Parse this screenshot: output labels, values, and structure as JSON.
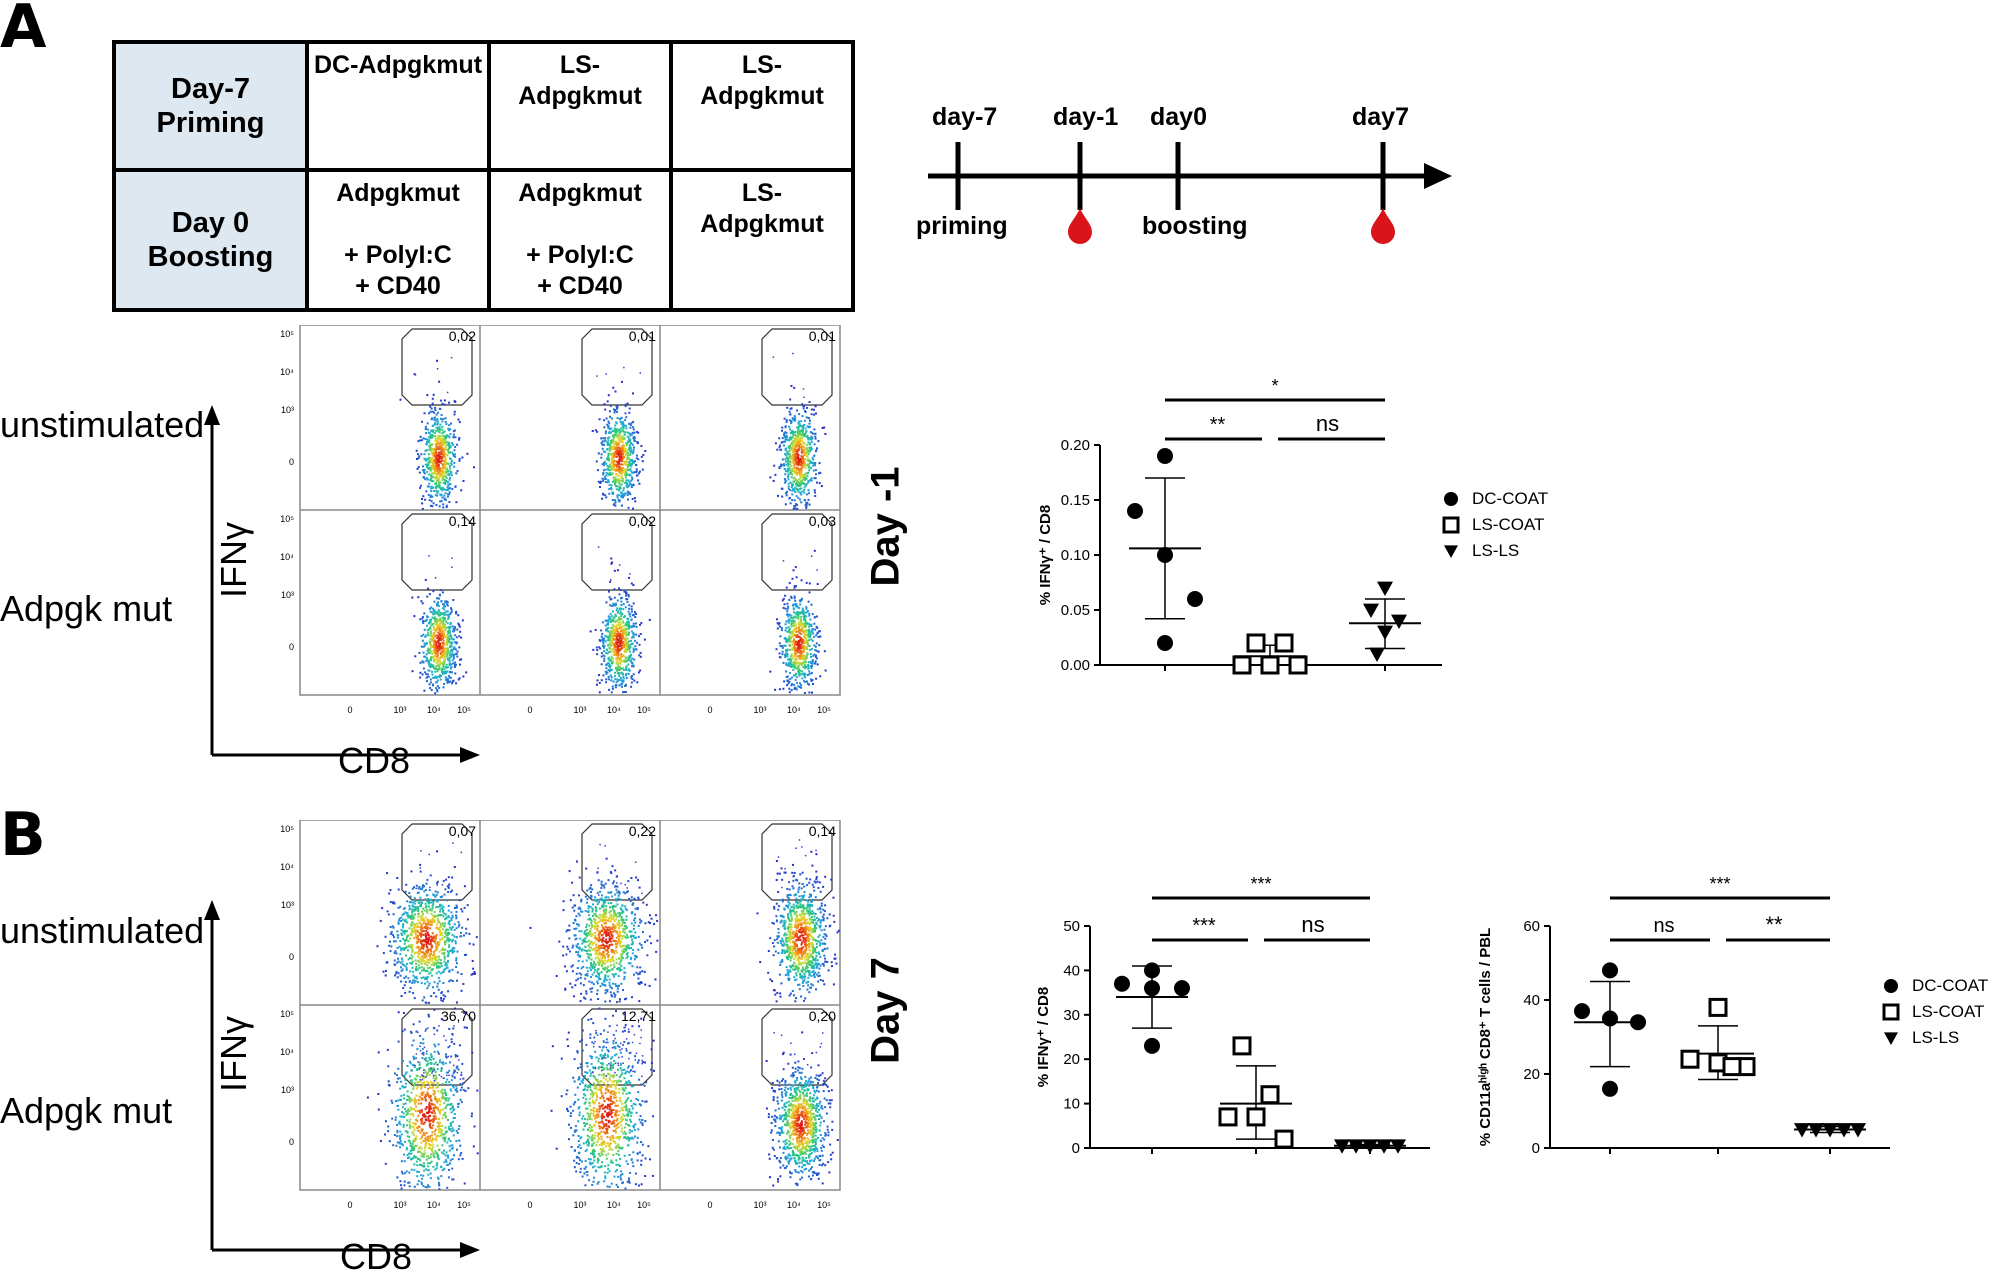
{
  "panels": {
    "a": "A",
    "b": "B"
  },
  "protocol_table": {
    "row_headers": [
      "Day-7\nPriming",
      "Day 0\nBoosting"
    ],
    "priming": [
      "DC-Adpgkmut",
      "LS-\nAdpgkmut",
      "LS-\nAdpgkmut"
    ],
    "boosting": [
      "Adpgkmut\n\n+ PolyI:C\n+ CD40",
      "Adpgkmut\n\n+ PolyI:C\n+ CD40",
      "LS-\nAdpgkmut"
    ]
  },
  "timeline": {
    "top_labels": [
      "day-7",
      "day-1",
      "day0",
      "day7"
    ],
    "bottom_labels": [
      "priming",
      "boosting"
    ],
    "blood_color": "#d9141b"
  },
  "flow": {
    "row_labels": [
      "unstimulated",
      "Adpgk mut"
    ],
    "y_axis": "IFNγ",
    "x_axis": "CD8",
    "y_ticks": [
      "10⁵",
      "10⁴",
      "10³",
      "0"
    ],
    "x_ticks": [
      "0",
      "10³",
      "10⁴",
      "10⁵"
    ],
    "day_minus1_pcts": [
      [
        "0,02",
        "0,01",
        "0,01"
      ],
      [
        "0,14",
        "0,02",
        "0,03"
      ]
    ],
    "day7_pcts": [
      [
        "0,07",
        "0,22",
        "0,14"
      ],
      [
        "36,70",
        "12,71",
        "0,20"
      ]
    ]
  },
  "day_labels": {
    "a": "Day -1",
    "b": "Day 7"
  },
  "chart_data": [
    {
      "type": "scatter",
      "title": "",
      "ylabel": "% IFNγ⁺ / CD8",
      "ylim": [
        0,
        0.2
      ],
      "yticks": [
        "0.00",
        "0.05",
        "0.10",
        "0.15",
        "0.20"
      ],
      "groups": [
        "DC-COAT",
        "LS-COAT",
        "LS-LS"
      ],
      "series": [
        {
          "name": "DC-COAT",
          "marker": "circle",
          "values": [
            0.19,
            0.14,
            0.1,
            0.06,
            0.02
          ],
          "mean": 0.106,
          "sd_low": 0.042,
          "sd_high": 0.17
        },
        {
          "name": "LS-COAT",
          "marker": "square",
          "values": [
            0.02,
            0.02,
            0.0,
            0.0,
            0.0
          ],
          "mean": 0.008,
          "sd_low": 0.0,
          "sd_high": 0.018
        },
        {
          "name": "LS-LS",
          "marker": "triangle-down",
          "values": [
            0.07,
            0.05,
            0.04,
            0.03,
            0.01
          ],
          "mean": 0.038,
          "sd_low": 0.015,
          "sd_high": 0.06
        }
      ],
      "significance": [
        "*",
        "**",
        "ns"
      ]
    },
    {
      "type": "scatter",
      "title": "",
      "ylabel": "% IFNγ⁺ / CD8",
      "ylim": [
        0,
        50
      ],
      "yticks": [
        "0",
        "10",
        "20",
        "30",
        "40",
        "50"
      ],
      "groups": [
        "DC-COAT",
        "LS-COAT",
        "LS-LS"
      ],
      "series": [
        {
          "name": "DC-COAT",
          "marker": "circle",
          "values": [
            40,
            37,
            36,
            36,
            23
          ],
          "mean": 34,
          "sd_low": 27,
          "sd_high": 41
        },
        {
          "name": "LS-COAT",
          "marker": "square",
          "values": [
            23,
            12,
            7,
            7,
            2
          ],
          "mean": 10,
          "sd_low": 2,
          "sd_high": 18.5
        },
        {
          "name": "LS-LS",
          "marker": "triangle-down",
          "values": [
            0.5,
            0.5,
            0.5,
            0.5,
            0.5
          ],
          "mean": 0.5,
          "sd_low": 0.2,
          "sd_high": 0.8
        }
      ],
      "significance": [
        "***",
        "***",
        "ns"
      ]
    },
    {
      "type": "scatter",
      "title": "",
      "ylabel": "% CD11aʰⁱᵍʰ CD8⁺ T cells / PBL",
      "ylim": [
        0,
        60
      ],
      "yticks": [
        "0",
        "20",
        "40",
        "60"
      ],
      "groups": [
        "DC-COAT",
        "LS-COAT",
        "LS-LS"
      ],
      "series": [
        {
          "name": "DC-COAT",
          "marker": "circle",
          "values": [
            48,
            37,
            35,
            34,
            16
          ],
          "mean": 34,
          "sd_low": 22,
          "sd_high": 45
        },
        {
          "name": "LS-COAT",
          "marker": "square",
          "values": [
            38,
            24,
            23,
            22,
            22
          ],
          "mean": 25.5,
          "sd_low": 18.5,
          "sd_high": 33
        },
        {
          "name": "LS-LS",
          "marker": "triangle-down",
          "values": [
            5,
            5,
            5,
            5,
            5
          ],
          "mean": 5,
          "sd_low": 4.2,
          "sd_high": 5.8
        }
      ],
      "significance": [
        "***",
        "ns",
        "**"
      ]
    }
  ],
  "legend": [
    "DC-COAT",
    "LS-COAT",
    "LS-LS"
  ]
}
